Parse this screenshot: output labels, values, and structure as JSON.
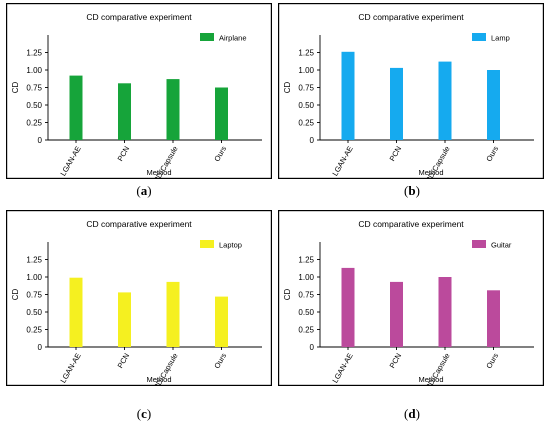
{
  "chart_data": [
    {
      "type": "bar",
      "caption": "a",
      "title": "CD comparative experiment",
      "xlabel": "Method",
      "ylabel": "CD",
      "categories": [
        "LGAN-AE",
        "PCN",
        "3D-Capsule",
        "Ours"
      ],
      "series": [
        {
          "name": "Airplane",
          "values": [
            0.92,
            0.81,
            0.87,
            0.75
          ],
          "color": "#16a43a"
        }
      ],
      "yticks": [
        "0",
        "0.25",
        "0.50",
        "0.75",
        "1.00",
        "1.25"
      ],
      "ylim": [
        0,
        1.5
      ],
      "legend": "top-right",
      "grid": false
    },
    {
      "type": "bar",
      "caption": "b",
      "title": "CD comparative experiment",
      "xlabel": "Method",
      "ylabel": "CD",
      "categories": [
        "LGAN-AE",
        "PCN",
        "3D-Capsule",
        "Ours"
      ],
      "series": [
        {
          "name": "Lamp",
          "values": [
            1.26,
            1.03,
            1.12,
            1.0
          ],
          "color": "#15aaef"
        }
      ],
      "yticks": [
        "0",
        "0.25",
        "0.50",
        "0.75",
        "1.00",
        "1.25"
      ],
      "ylim": [
        0,
        1.5
      ],
      "legend": "top-right",
      "grid": false
    },
    {
      "type": "bar",
      "caption": "c",
      "title": "CD comparative experiment",
      "xlabel": "Method",
      "ylabel": "CD",
      "categories": [
        "LGAN-AE",
        "PCN",
        "3D-Capsule",
        "Ours"
      ],
      "series": [
        {
          "name": "Laptop",
          "values": [
            0.99,
            0.78,
            0.93,
            0.72
          ],
          "color": "#f5f020"
        }
      ],
      "yticks": [
        "0",
        "0.25",
        "0.50",
        "0.75",
        "1.00",
        "1.25"
      ],
      "ylim": [
        0,
        1.5
      ],
      "legend": "top-right",
      "grid": false
    },
    {
      "type": "bar",
      "caption": "d",
      "title": "CD comparative experiment",
      "xlabel": "Method",
      "ylabel": "CD",
      "categories": [
        "LGAN-AE",
        "PCN",
        "3D-Capsule",
        "Ours"
      ],
      "series": [
        {
          "name": "Guitar",
          "values": [
            1.13,
            0.93,
            1.0,
            0.81
          ],
          "color": "#bb4a9c"
        }
      ],
      "yticks": [
        "0",
        "0.25",
        "0.50",
        "0.75",
        "1.00",
        "1.25"
      ],
      "ylim": [
        0,
        1.5
      ],
      "legend": "top-right",
      "grid": false
    }
  ]
}
